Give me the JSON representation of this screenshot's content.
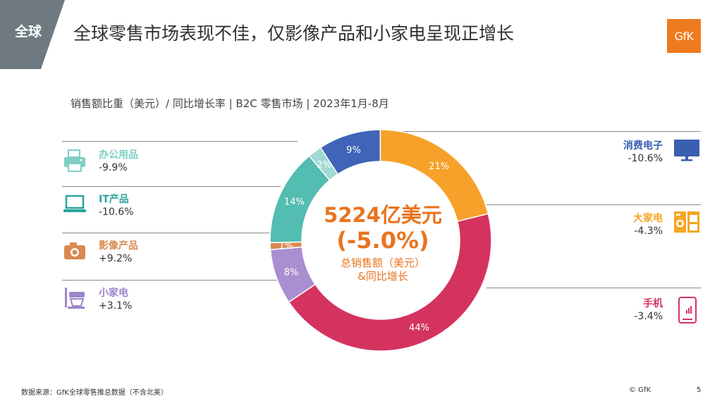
{
  "header": {
    "region_tab": "全球",
    "title": "全球零售市场表现不佳，仅影像产品和小家电呈现正增长",
    "logo_text": "GfK"
  },
  "subtitle": "销售额比重（美元）/ 同比增长率 | B2C 零售市场 | 2023年1月-8月",
  "categories_left": [
    {
      "name": "办公用品",
      "growth": "-9.9%",
      "color": "#7fcfc6",
      "icon": "printer-icon"
    },
    {
      "name": "IT产品",
      "growth": "-10.6%",
      "color": "#2aa39a",
      "icon": "laptop-icon"
    },
    {
      "name": "影像产品",
      "growth": "+9.2%",
      "color": "#d98a52",
      "icon": "camera-icon"
    },
    {
      "name": "小家电",
      "growth": "+3.1%",
      "color": "#9d85c9",
      "icon": "mixer-icon"
    }
  ],
  "categories_right": [
    {
      "name": "消费电子",
      "growth": "-10.6%",
      "color": "#3a5fb0",
      "icon": "tv-icon"
    },
    {
      "name": "大家电",
      "growth": "-4.3%",
      "color": "#f5a623",
      "icon": "washing-machine-icon"
    },
    {
      "name": "手机",
      "growth": "-3.4%",
      "color": "#d4335f",
      "icon": "phone-icon"
    }
  ],
  "center": {
    "value": "5224亿美元",
    "change": "(-5.0%)",
    "caption_line1": "总销售额（美元）",
    "caption_line2": "&同比增长"
  },
  "chart_data": {
    "type": "pie",
    "donut": true,
    "categories": [
      "消费电子",
      "大家电",
      "手机",
      "小家电",
      "影像产品",
      "IT产品",
      "办公用品"
    ],
    "values": [
      9,
      21,
      44,
      8,
      1,
      14,
      2
    ],
    "labels": [
      "9%",
      "21%",
      "44%",
      "8%",
      "1%",
      "14%",
      "2%"
    ],
    "colors": [
      "#3f64b8",
      "#f6a22a",
      "#d4335f",
      "#a98fd0",
      "#d98a52",
      "#52bdb0",
      "#9fd9d2"
    ]
  },
  "footer": {
    "source": "数据来源：GfK全球零售推总数据（不含北美）",
    "copyright": "© GfK",
    "page_number": "5"
  }
}
